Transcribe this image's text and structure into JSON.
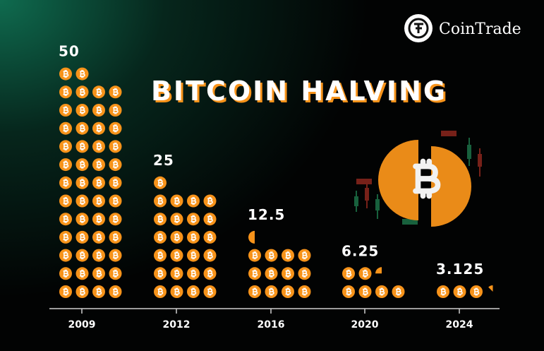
{
  "brand": "CoinTrade",
  "chart_data": {
    "type": "pictogram",
    "title": "BITCOIN HALVING",
    "categories": [
      "2009",
      "2012",
      "2016",
      "2020",
      "2024"
    ],
    "values": [
      50,
      25,
      12.5,
      6.25,
      3.125
    ],
    "color": "#f7931a"
  }
}
